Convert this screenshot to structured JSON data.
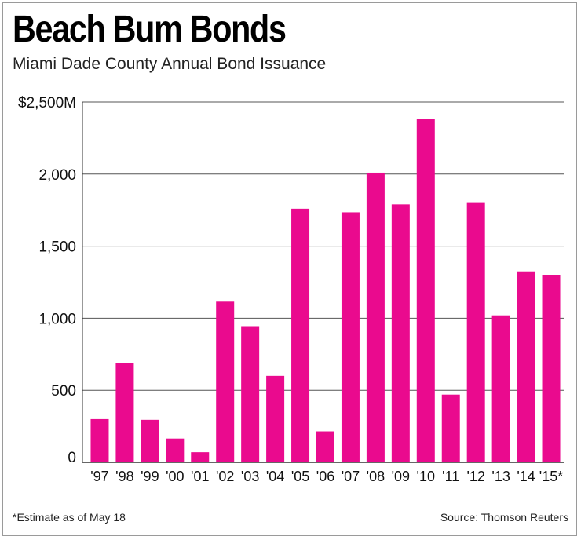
{
  "title": "Beach Bum Bonds",
  "subtitle": "Miami Dade County Annual Bond Issuance",
  "footnote": "*Estimate as of May 18",
  "source": "Source: Thomson Reuters",
  "colors": {
    "bar": "#ea0a8e",
    "grid": "#555555",
    "axis": "#333333"
  },
  "chart_data": {
    "type": "bar",
    "title": "Beach Bum Bonds",
    "subtitle": "Miami Dade County Annual Bond Issuance",
    "categories": [
      "'97",
      "'98",
      "'99",
      "'00",
      "'01",
      "'02",
      "'03",
      "'04",
      "'05",
      "'06",
      "'07",
      "'08",
      "'09",
      "'10",
      "'11",
      "'12",
      "'13",
      "'14",
      "'15*"
    ],
    "values": [
      300,
      690,
      295,
      165,
      70,
      1115,
      945,
      600,
      1760,
      215,
      1735,
      2010,
      1790,
      2385,
      470,
      1805,
      1020,
      1325,
      1300
    ],
    "y_ticks": [
      0,
      500,
      1000,
      1500,
      2000,
      2500
    ],
    "y_tick_labels": [
      "0",
      "500",
      "1,000",
      "1,500",
      "2,000",
      "$2,500M"
    ],
    "ylim": [
      0,
      2500
    ],
    "grid": true,
    "xlabel": "",
    "ylabel": ""
  }
}
